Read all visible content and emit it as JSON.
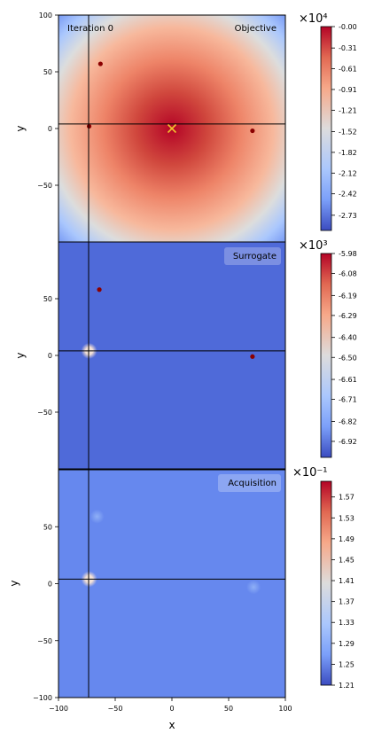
{
  "figure": {
    "iteration_label": "Iteration 0",
    "xlabel": "x"
  },
  "chart_data": [
    {
      "type": "heatmap",
      "panel": "objective",
      "title": "Objective",
      "xlabel": "",
      "ylabel": "y",
      "xlim": [
        -100,
        100
      ],
      "ylim": [
        -100,
        100
      ],
      "x_ticks": [],
      "y_ticks": [
        "100",
        "50",
        "0",
        "−50"
      ],
      "y_tick_values": [
        100,
        50,
        0,
        -50
      ],
      "colormap": "coolwarm",
      "colorbar": {
        "exponent_label": "×10⁴",
        "range": [
          -2.95,
          0.0
        ],
        "ticks": [
          "-0.00",
          "-0.31",
          "-0.61",
          "-0.91",
          "-1.21",
          "-1.52",
          "-1.82",
          "-2.12",
          "-2.42",
          "-2.73"
        ],
        "tick_values": [
          0.0,
          -0.31,
          -0.61,
          -0.91,
          -1.21,
          -1.52,
          -1.82,
          -2.12,
          -2.42,
          -2.73
        ]
      },
      "points": [
        {
          "x": -63,
          "y": 57
        },
        {
          "x": -73,
          "y": 2
        },
        {
          "x": 71,
          "y": -2
        }
      ],
      "optimum": {
        "x": 0,
        "y": 0,
        "marker": "×",
        "color": "#f2c12e"
      },
      "crosshair": {
        "x": -73,
        "y": 4
      }
    },
    {
      "type": "heatmap",
      "panel": "surrogate",
      "title": "Surrogate",
      "xlabel": "",
      "ylabel": "y",
      "xlim": [
        -100,
        100
      ],
      "ylim": [
        -100,
        100
      ],
      "x_ticks": [],
      "y_ticks": [
        "50",
        "0",
        "−50"
      ],
      "y_tick_values": [
        50,
        0,
        -50
      ],
      "colormap": "coolwarm",
      "colorbar": {
        "exponent_label": "×10³",
        "range": [
          -7.0,
          -5.98
        ],
        "ticks": [
          "-5.98",
          "-6.08",
          "-6.19",
          "-6.29",
          "-6.40",
          "-6.50",
          "-6.61",
          "-6.71",
          "-6.82",
          "-6.92"
        ],
        "tick_values": [
          -5.98,
          -6.08,
          -6.19,
          -6.29,
          -6.4,
          -6.5,
          -6.61,
          -6.71,
          -6.82,
          -6.92
        ]
      },
      "points": [
        {
          "x": -64,
          "y": 58
        },
        {
          "x": 71,
          "y": -1
        }
      ],
      "highlight": {
        "x": -73,
        "y": 4
      },
      "crosshair": {
        "x": -73,
        "y": 4
      }
    },
    {
      "type": "heatmap",
      "panel": "acquisition",
      "title": "Acquisition",
      "xlabel": "x",
      "ylabel": "y",
      "xlim": [
        -100,
        100
      ],
      "ylim": [
        -100,
        100
      ],
      "x_ticks": [
        "−100",
        "−50",
        "0",
        "50",
        "100"
      ],
      "x_tick_values": [
        -100,
        -50,
        0,
        50,
        100
      ],
      "y_ticks": [
        "50",
        "0",
        "−50",
        "−100"
      ],
      "y_tick_values": [
        50,
        0,
        -50,
        -100
      ],
      "colormap": "coolwarm",
      "colorbar": {
        "exponent_label": "×10⁻¹",
        "range": [
          1.21,
          1.6
        ],
        "ticks": [
          "1.57",
          "1.53",
          "1.49",
          "1.45",
          "1.41",
          "1.37",
          "1.33",
          "1.29",
          "1.25",
          "1.21"
        ],
        "tick_values": [
          1.57,
          1.53,
          1.49,
          1.45,
          1.41,
          1.37,
          1.33,
          1.29,
          1.25,
          1.21
        ]
      },
      "highlight": {
        "x": -73,
        "y": 4
      },
      "faint_spots": [
        {
          "x": -66,
          "y": 59
        },
        {
          "x": 72,
          "y": -3
        }
      ],
      "crosshair": {
        "x": -73,
        "y": 4
      }
    }
  ]
}
